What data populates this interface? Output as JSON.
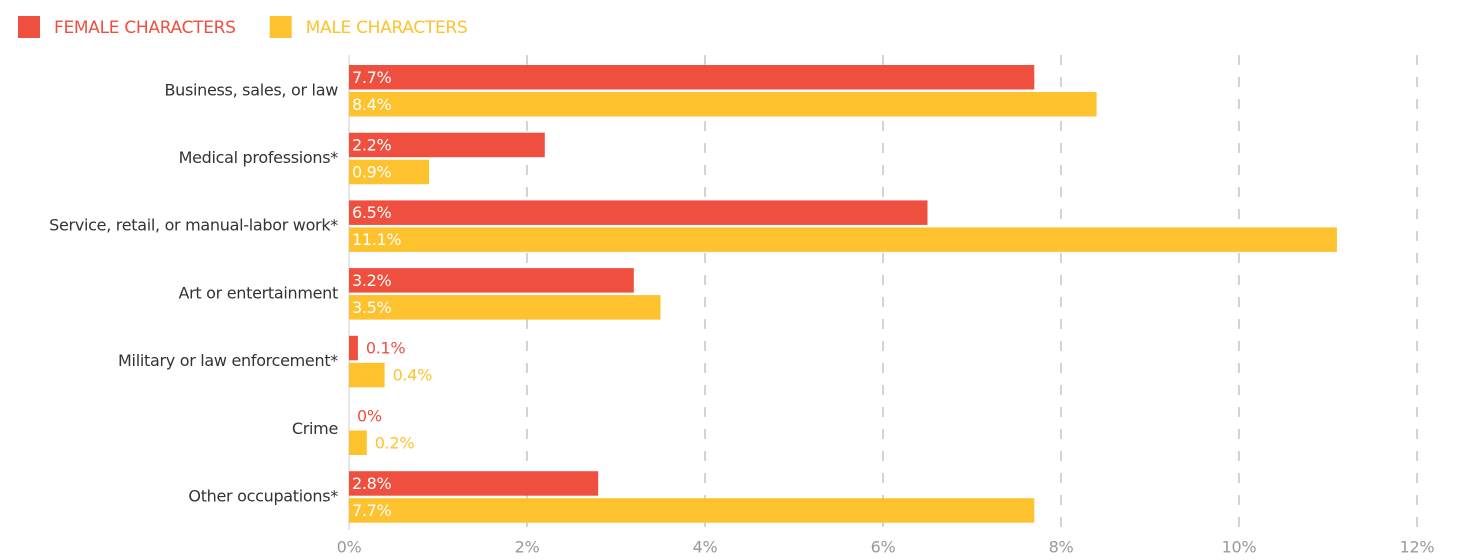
{
  "chart_data": {
    "type": "bar",
    "orientation": "horizontal",
    "categories": [
      "Business, sales, or law",
      "Medical professions*",
      "Service, retail, or manual-labor work*",
      "Art or entertainment",
      "Military or law enforcement*",
      "Crime",
      "Other occupations*"
    ],
    "series": [
      {
        "name": "FEMALE CHARACTERS",
        "color": "#ef4f3e",
        "values": [
          7.7,
          2.2,
          6.5,
          3.2,
          0.1,
          0,
          2.8
        ],
        "value_labels": [
          "7.7%",
          "2.2%",
          "6.5%",
          "3.2%",
          "0.1%",
          "0%",
          "2.8%"
        ]
      },
      {
        "name": "MALE CHARACTERS",
        "color": "#fdc22d",
        "values": [
          8.4,
          0.9,
          11.1,
          3.5,
          0.4,
          0.2,
          7.7
        ],
        "value_labels": [
          "8.4%",
          "0.9%",
          "11.1%",
          "3.5%",
          "0.4%",
          "0.2%",
          "7.7%"
        ]
      }
    ],
    "xlim": [
      0,
      12
    ],
    "xticks": [
      {
        "value": 0,
        "label": "0%"
      },
      {
        "value": 2,
        "label": "2%"
      },
      {
        "value": 4,
        "label": "4%"
      },
      {
        "value": 6,
        "label": "6%"
      },
      {
        "value": 8,
        "label": "8%"
      },
      {
        "value": 10,
        "label": "10%"
      },
      {
        "value": 12,
        "label": "12%"
      }
    ],
    "grid": true,
    "legend": "top-left"
  }
}
